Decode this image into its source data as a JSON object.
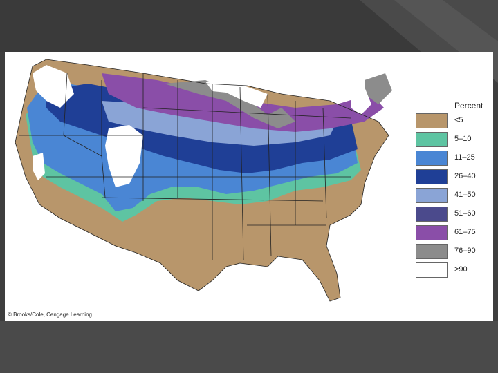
{
  "legend": {
    "title": "Percent",
    "items": [
      {
        "label": "<5",
        "color": "#b8966b"
      },
      {
        "label": "5–10",
        "color": "#5ec4a2"
      },
      {
        "label": "11–25",
        "color": "#4a86d4"
      },
      {
        "label": "26–40",
        "color": "#1f3f96"
      },
      {
        "label": "41–50",
        "color": "#8aa4d6"
      },
      {
        "label": "51–60",
        "color": "#4b4a8c"
      },
      {
        "label": "61–75",
        "color": "#8a4ea8"
      },
      {
        "label": "76–90",
        "color": "#8c8c8c"
      },
      {
        "label": ">90",
        "color": "#ffffff"
      }
    ]
  },
  "credit": "© Brooks/Cole, Cengage Learning"
}
